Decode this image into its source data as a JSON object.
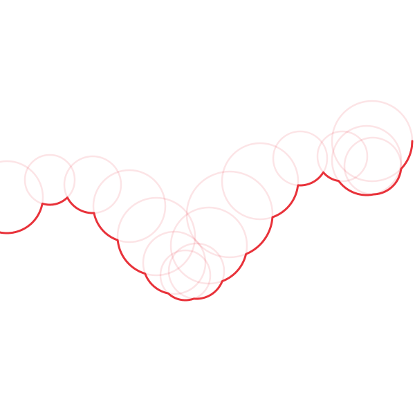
{
  "diagram": {
    "style": {
      "background": "#ffffff",
      "accent_color": "#e8323a",
      "circle_fill": "none",
      "faint_opacity": 0.13,
      "lower_envelope_opacity": 1
    },
    "circle_count": 18
  }
}
